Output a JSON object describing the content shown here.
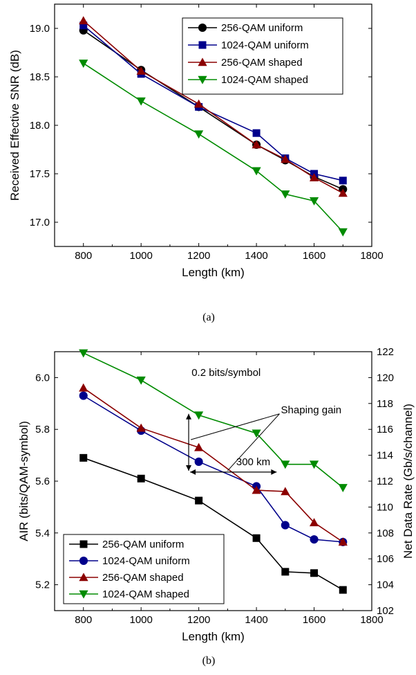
{
  "chart_data": [
    {
      "type": "line",
      "caption": "(a)",
      "xlabel": "Length (km)",
      "ylabel": "Received Effective SNR (dB)",
      "xlim": [
        700,
        1800
      ],
      "ylim": [
        16.75,
        19.25
      ],
      "xticks": [
        "800",
        "1000",
        "1200",
        "1400",
        "1600",
        "1800"
      ],
      "yticks": [
        "17.0",
        "17.5",
        "18.0",
        "18.5",
        "19.0"
      ],
      "legend_position": "top-right",
      "series": [
        {
          "name": "256-QAM uniform",
          "color": "#000000",
          "marker": "circle",
          "x": [
            800,
            1000,
            1200,
            1400,
            1500,
            1600,
            1700
          ],
          "y": [
            18.98,
            18.57,
            18.19,
            17.8,
            17.64,
            17.47,
            17.34
          ]
        },
        {
          "name": "1024-QAM uniform",
          "color": "#00008B",
          "marker": "square",
          "x": [
            800,
            1000,
            1200,
            1400,
            1500,
            1600,
            1700
          ],
          "y": [
            19.03,
            18.53,
            18.19,
            17.92,
            17.66,
            17.5,
            17.43
          ]
        },
        {
          "name": "256-QAM shaped",
          "color": "#8B0000",
          "marker": "triangle-up",
          "x": [
            800,
            1000,
            1200,
            1400,
            1500,
            1600,
            1700
          ],
          "y": [
            19.08,
            18.56,
            18.22,
            17.8,
            17.65,
            17.46,
            17.3
          ]
        },
        {
          "name": "1024-QAM shaped",
          "color": "#008B00",
          "marker": "triangle-down",
          "x": [
            800,
            1000,
            1200,
            1400,
            1500,
            1600,
            1700
          ],
          "y": [
            18.64,
            18.25,
            17.91,
            17.53,
            17.29,
            17.22,
            16.9
          ]
        }
      ]
    },
    {
      "type": "line",
      "caption": "(b)",
      "xlabel": "Length (km)",
      "ylabel": "AIR (bits/QAM-symbol)",
      "y2label": "Net Data Rate (Gb/s/channel)",
      "xlim": [
        700,
        1800
      ],
      "ylim": [
        5.1,
        6.1
      ],
      "y2lim": [
        102,
        122
      ],
      "xticks": [
        "800",
        "1000",
        "1200",
        "1400",
        "1600",
        "1800"
      ],
      "yticks": [
        "5.2",
        "5.4",
        "5.6",
        "5.8",
        "6.0"
      ],
      "y2ticks": [
        "102",
        "104",
        "106",
        "108",
        "110",
        "112",
        "114",
        "116",
        "118",
        "120",
        "122"
      ],
      "legend_position": "bottom-left",
      "annotations": {
        "gain_bits": "0.2 bits/symbol",
        "shaping_gain": "Shaping gain",
        "gain_km": "300 km"
      },
      "series": [
        {
          "name": "256-QAM uniform",
          "color": "#000000",
          "marker": "square",
          "x": [
            800,
            1000,
            1200,
            1400,
            1500,
            1600,
            1700
          ],
          "y": [
            5.69,
            5.61,
            5.525,
            5.38,
            5.25,
            5.245,
            5.18
          ]
        },
        {
          "name": "1024-QAM uniform",
          "color": "#00008B",
          "marker": "circle",
          "x": [
            800,
            1000,
            1200,
            1400,
            1500,
            1600,
            1700
          ],
          "y": [
            5.93,
            5.795,
            5.675,
            5.58,
            5.43,
            5.375,
            5.365
          ]
        },
        {
          "name": "256-QAM shaped",
          "color": "#8B0000",
          "marker": "triangle-up",
          "x": [
            800,
            1000,
            1200,
            1400,
            1500,
            1600,
            1700
          ],
          "y": [
            5.96,
            5.805,
            5.73,
            5.565,
            5.56,
            5.44,
            5.365
          ]
        },
        {
          "name": "1024-QAM shaped",
          "color": "#008B00",
          "marker": "triangle-down",
          "x": [
            800,
            1000,
            1200,
            1400,
            1500,
            1600,
            1700
          ],
          "y": [
            6.095,
            5.99,
            5.855,
            5.785,
            5.665,
            5.665,
            5.575
          ]
        }
      ]
    }
  ]
}
